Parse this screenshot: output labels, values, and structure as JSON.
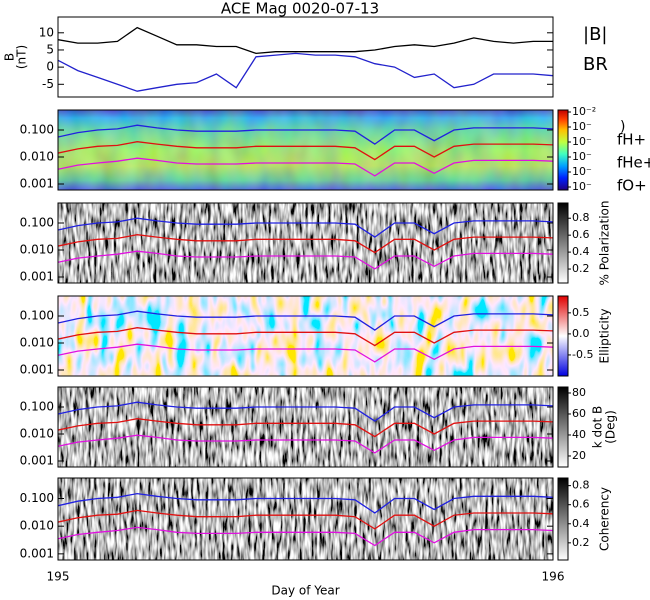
{
  "chart_data": [
    {
      "type": "line",
      "title": "ACE Mag 0020-07-13",
      "ylabel": [
        "B",
        "(nT)"
      ],
      "x": [
        195.0,
        195.04,
        195.08,
        195.12,
        195.16,
        195.2,
        195.24,
        195.28,
        195.32,
        195.36,
        195.4,
        195.44,
        195.48,
        195.52,
        195.56,
        195.6,
        195.64,
        195.68,
        195.72,
        195.76,
        195.8,
        195.84,
        195.88,
        195.92,
        195.96,
        196.0
      ],
      "series": [
        {
          "name": "|B|",
          "color": "#000000",
          "values": [
            8,
            7,
            7,
            7.5,
            11.5,
            9,
            6.5,
            6.5,
            6,
            6,
            4,
            4.5,
            4.5,
            4.5,
            4.5,
            4.5,
            5,
            6,
            6.5,
            6,
            7,
            8.5,
            7.5,
            7,
            7.5,
            7.5
          ]
        },
        {
          "name": "BR",
          "color": "#2222cc",
          "values": [
            2,
            -1,
            -3,
            -5,
            -7,
            -6,
            -5,
            -4.5,
            -2,
            -6,
            3,
            3.5,
            4,
            3.5,
            3.5,
            3,
            1,
            0,
            -3,
            -2,
            -6,
            -5,
            -2,
            -2,
            -2,
            -2.5
          ]
        }
      ],
      "xlim": [
        195,
        196
      ],
      "ylim": [
        -8.7,
        14.6
      ],
      "yticks": [
        -5,
        0,
        5,
        10
      ]
    },
    {
      "type": "spectrogram",
      "log_y": true,
      "xlim": [
        195,
        196
      ],
      "ylim": [
        0.0006,
        0.55
      ],
      "yticks": [
        {
          "value": 0.1,
          "label": "0.100"
        },
        {
          "value": 0.01,
          "label": "0.010"
        },
        {
          "value": 0.001,
          "label": "0.001"
        }
      ],
      "x": [
        195.0,
        195.04,
        195.08,
        195.12,
        195.16,
        195.2,
        195.24,
        195.28,
        195.32,
        195.36,
        195.4,
        195.44,
        195.48,
        195.52,
        195.56,
        195.6,
        195.64,
        195.68,
        195.72,
        195.76,
        195.8,
        195.84,
        195.88,
        195.92,
        195.96,
        196.0
      ],
      "series": [
        {
          "name": "fH+",
          "color": "#2020e0",
          "values": [
            0.055,
            0.08,
            0.1,
            0.11,
            0.15,
            0.12,
            0.1,
            0.09,
            0.09,
            0.09,
            0.1,
            0.1,
            0.1,
            0.1,
            0.1,
            0.09,
            0.03,
            0.1,
            0.1,
            0.04,
            0.1,
            0.12,
            0.12,
            0.12,
            0.12,
            0.11
          ]
        },
        {
          "name": "fHe+",
          "color": "#e01010",
          "values": [
            0.014,
            0.02,
            0.025,
            0.027,
            0.037,
            0.03,
            0.025,
            0.022,
            0.022,
            0.022,
            0.025,
            0.025,
            0.025,
            0.025,
            0.025,
            0.022,
            0.008,
            0.025,
            0.025,
            0.01,
            0.025,
            0.03,
            0.03,
            0.03,
            0.03,
            0.028
          ]
        },
        {
          "name": "fO+",
          "color": "#e010e0",
          "values": [
            0.0035,
            0.005,
            0.006,
            0.007,
            0.009,
            0.0075,
            0.006,
            0.0055,
            0.0055,
            0.0055,
            0.006,
            0.006,
            0.006,
            0.006,
            0.006,
            0.0055,
            0.002,
            0.006,
            0.006,
            0.0025,
            0.006,
            0.0075,
            0.0075,
            0.0075,
            0.0075,
            0.007
          ]
        }
      ],
      "colorbar": {
        "colormap": "jet",
        "log": true,
        "label": ")",
        "lim": [
          6.3e-08,
          0.0136
        ],
        "ticks": [
          {
            "value": 0.01,
            "label": "10⁻²"
          },
          {
            "value": 0.001,
            "label": "10⁻"
          },
          {
            "value": 0.0001,
            "label": "10⁻"
          },
          {
            "value": 1e-05,
            "label": "10⁻"
          },
          {
            "value": 1e-06,
            "label": "10⁻"
          },
          {
            "value": 1e-07,
            "label": "10⁻"
          }
        ]
      }
    },
    {
      "type": "spectrogram",
      "log_y": true,
      "xlim": [
        195,
        196
      ],
      "ylim": [
        0.0006,
        0.55
      ],
      "yticks": [
        {
          "value": 0.1,
          "label": "0.100"
        },
        {
          "value": 0.01,
          "label": "0.010"
        },
        {
          "value": 0.001,
          "label": "0.001"
        }
      ],
      "colorbar": {
        "colormap": "gray",
        "label": "% Polarization",
        "lim": [
          0.035,
          0.98
        ],
        "ticks": [
          0.2,
          0.4,
          0.6,
          0.8
        ]
      }
    },
    {
      "type": "spectrogram",
      "log_y": true,
      "xlim": [
        195,
        196
      ],
      "ylim": [
        0.0006,
        0.55
      ],
      "yticks": [
        {
          "value": 0.1,
          "label": "0.100"
        },
        {
          "value": 0.01,
          "label": "0.010"
        },
        {
          "value": 0.001,
          "label": "0.001"
        }
      ],
      "colorbar": {
        "colormap": "bwr",
        "label": "Ellipticity",
        "lim": [
          -1,
          0.9
        ],
        "ticks": [
          0.5,
          {
            "value": 0,
            "label": "0.0"
          },
          -0.5
        ]
      }
    },
    {
      "type": "spectrogram",
      "log_y": true,
      "xlim": [
        195,
        196
      ],
      "ylim": [
        0.0006,
        0.55
      ],
      "yticks": [
        {
          "value": 0.1,
          "label": "0.100"
        },
        {
          "value": 0.01,
          "label": "0.010"
        },
        {
          "value": 0.001,
          "label": "0.001"
        }
      ],
      "colorbar": {
        "colormap": "gray",
        "label": [
          "k dot B",
          "(Deg)"
        ],
        "lim": [
          9.5,
          85.7
        ],
        "ticks": [
          20,
          40,
          60,
          80
        ]
      }
    },
    {
      "type": "spectrogram",
      "log_y": true,
      "xlim": [
        195,
        196
      ],
      "ylim": [
        0.0006,
        0.55
      ],
      "yticks": [
        {
          "value": 0.1,
          "label": "0.100"
        },
        {
          "value": 0.01,
          "label": "0.010"
        },
        {
          "value": 0.001,
          "label": "0.001"
        }
      ],
      "xticks": [
        195,
        196
      ],
      "xlabel": "Day of Year",
      "colorbar": {
        "colormap": "gray",
        "label": "Coherency",
        "lim": [
          0.02,
          0.88
        ],
        "ticks": [
          0.2,
          0.4,
          0.6,
          0.8
        ]
      }
    }
  ]
}
